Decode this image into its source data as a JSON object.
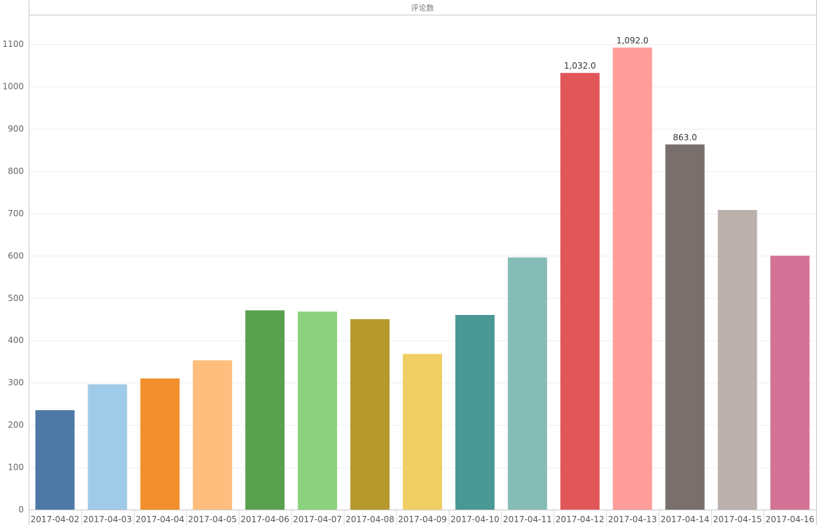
{
  "chart_data": {
    "type": "bar",
    "title": "评论数",
    "xlabel": "",
    "ylabel": "",
    "categories": [
      "2017-04-02",
      "2017-04-03",
      "2017-04-04",
      "2017-04-05",
      "2017-04-06",
      "2017-04-07",
      "2017-04-08",
      "2017-04-09",
      "2017-04-10",
      "2017-04-11",
      "2017-04-12",
      "2017-04-13",
      "2017-04-14",
      "2017-04-15",
      "2017-04-16"
    ],
    "values": [
      235,
      296,
      310,
      353,
      471,
      468,
      450,
      368,
      460,
      596,
      1032,
      1092,
      863,
      708,
      600
    ],
    "colors": [
      "#4E79A7",
      "#A0CBE8",
      "#F28E2B",
      "#FFBE7D",
      "#59A14F",
      "#8CD17D",
      "#B6992D",
      "#F1CE63",
      "#499894",
      "#86BCB6",
      "#E15759",
      "#FF9D9A",
      "#79706E",
      "#BAB0AC",
      "#D37295"
    ],
    "data_labels": [
      {
        "index": 10,
        "text": "1,032.0"
      },
      {
        "index": 11,
        "text": "1,092.0"
      },
      {
        "index": 12,
        "text": "863.0"
      }
    ],
    "yticks": [
      0,
      100,
      200,
      300,
      400,
      500,
      600,
      700,
      800,
      900,
      1000,
      1100
    ],
    "ylim": [
      0,
      1168
    ],
    "grid": true,
    "legend": "none"
  }
}
